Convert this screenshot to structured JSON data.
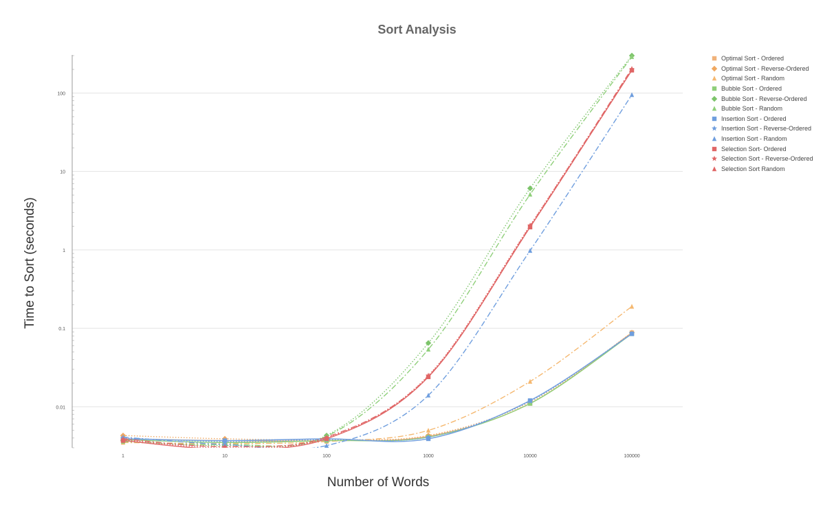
{
  "chart_data": {
    "type": "line",
    "title": "Sort Analysis",
    "xlabel": "Number of Words",
    "ylabel": "Time to Sort (seconds)",
    "x_scale": "log",
    "y_scale": "log",
    "x": [
      1,
      10,
      100,
      1000,
      10000,
      100000
    ],
    "x_tick_labels": [
      "1",
      "10",
      "100",
      "1000",
      "10000",
      "100000"
    ],
    "y_ticks": [
      0.01,
      0.1,
      1,
      10,
      100
    ],
    "y_tick_labels": [
      "0.01",
      "0.1",
      "1",
      "10",
      "100"
    ],
    "ylim": [
      0.003,
      300
    ],
    "grid": true,
    "legend_position": "right",
    "series": [
      {
        "name": "Optimal Sort - Ordered",
        "values": [
          0.0039,
          0.0037,
          0.0037,
          0.0042,
          0.011,
          0.088
        ],
        "color": "#f0b27a",
        "marker": "square",
        "dash": "solid"
      },
      {
        "name": "Optimal Sort - Reverse-Ordered",
        "values": [
          0.0043,
          0.0039,
          0.0038,
          0.0043,
          0.0115,
          0.088
        ],
        "color": "#f0a860",
        "marker": "diamond",
        "dash": "dotted"
      },
      {
        "name": "Optimal Sort - Random",
        "values": [
          0.0035,
          0.0034,
          0.0036,
          0.005,
          0.021,
          0.19
        ],
        "color": "#f5b870",
        "marker": "triangle",
        "dash": "dashdot"
      },
      {
        "name": "Bubble Sort - Ordered",
        "values": [
          0.0038,
          0.0035,
          0.0037,
          0.0041,
          0.011,
          0.085
        ],
        "color": "#8fcf7a",
        "marker": "square",
        "dash": "solid"
      },
      {
        "name": "Bubble Sort - Reverse-Ordered",
        "values": [
          0.0037,
          0.0032,
          0.0043,
          0.065,
          6.1,
          300
        ],
        "color": "#7cc46a",
        "marker": "diamond",
        "dash": "dotted"
      },
      {
        "name": "Bubble Sort - Random",
        "values": [
          0.0036,
          0.0033,
          0.0042,
          0.054,
          5.1,
          290
        ],
        "color": "#8fcf7a",
        "marker": "triangle",
        "dash": "dashdot"
      },
      {
        "name": "Insertion Sort - Ordered",
        "values": [
          0.0039,
          0.0037,
          0.0039,
          0.0039,
          0.012,
          0.085
        ],
        "color": "#6f9ede",
        "marker": "square",
        "dash": "solid"
      },
      {
        "name": "Insertion Sort - Reverse-Ordered",
        "values": [
          0.004,
          0.0036,
          0.0038,
          0.0041,
          0.0118,
          0.086
        ],
        "color": "#6f9ede",
        "marker": "star",
        "dash": "dotted"
      },
      {
        "name": "Insertion Sort - Random",
        "values": [
          0.0041,
          0.0033,
          0.0032,
          0.014,
          0.98,
          95
        ],
        "color": "#6f9ede",
        "marker": "triangle",
        "dash": "dashdot"
      },
      {
        "name": "Selection Sort- Ordered",
        "values": [
          0.0037,
          0.0029,
          0.0039,
          0.024,
          1.95,
          195
        ],
        "color": "#e06666",
        "marker": "square",
        "dash": "solid"
      },
      {
        "name": "Selection Sort - Reverse-Ordered",
        "values": [
          0.0038,
          0.003,
          0.004,
          0.025,
          2.05,
          200
        ],
        "color": "#e06666",
        "marker": "star",
        "dash": "dotted"
      },
      {
        "name": "Selection Sort  Random",
        "values": [
          0.0039,
          0.0031,
          0.0041,
          0.0245,
          2.0,
          205
        ],
        "color": "#e06666",
        "marker": "triangle",
        "dash": "dashdot"
      }
    ]
  }
}
